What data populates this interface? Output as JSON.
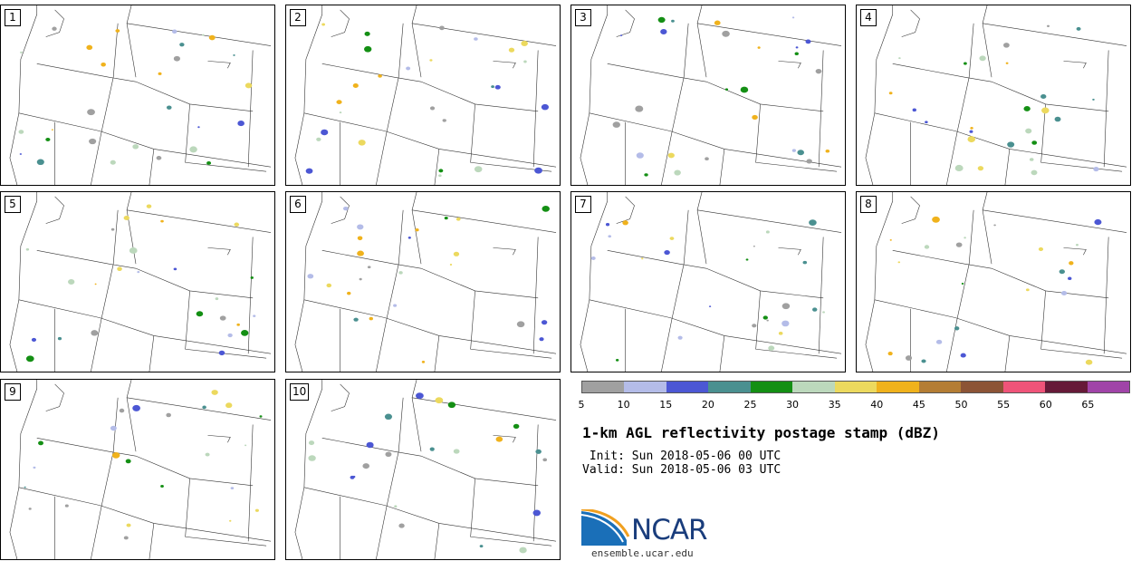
{
  "members": [
    {
      "label": "1"
    },
    {
      "label": "2"
    },
    {
      "label": "3"
    },
    {
      "label": "4"
    },
    {
      "label": "5"
    },
    {
      "label": "6"
    },
    {
      "label": "7"
    },
    {
      "label": "8"
    },
    {
      "label": "9"
    },
    {
      "label": "10"
    }
  ],
  "colorbar": {
    "ticks": [
      "5",
      "10",
      "15",
      "20",
      "25",
      "30",
      "35",
      "40",
      "45",
      "50",
      "55",
      "60",
      "65"
    ],
    "colors": [
      "#a0a0a0",
      "#b4bce8",
      "#4c57d4",
      "#4a9090",
      "#148f14",
      "#bcd8bc",
      "#ecd95e",
      "#f0b21c",
      "#b47d34",
      "#8c5436",
      "#ef5479",
      "#661a38",
      "#a044a8"
    ]
  },
  "title": "1-km AGL reflectivity postage stamp (dBZ)",
  "init": " Init: Sun 2018-05-06 00 UTC",
  "valid": "Valid: Sun 2018-05-06 03 UTC",
  "logo": {
    "text": "NCAR",
    "url": "ensemble.ucar.edu"
  }
}
